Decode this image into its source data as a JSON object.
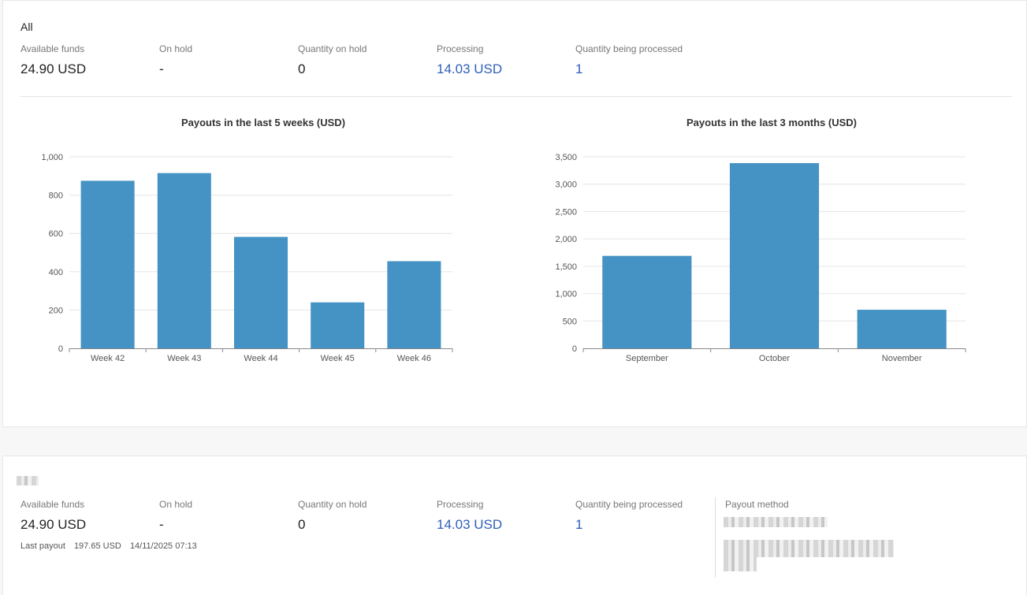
{
  "summary": {
    "title": "All",
    "metrics": [
      {
        "label": "Available funds",
        "value": "24.90 USD",
        "link": false
      },
      {
        "label": "On hold",
        "value": "-",
        "link": false
      },
      {
        "label": "Quantity on hold",
        "value": "0",
        "link": false
      },
      {
        "label": "Processing",
        "value": "14.03 USD",
        "link": true
      },
      {
        "label": "Quantity being processed",
        "value": "1",
        "link": true
      }
    ]
  },
  "chart_data": [
    {
      "type": "bar",
      "title": "Payouts in the last 5 weeks (USD)",
      "categories": [
        "Week 42",
        "Week 43",
        "Week 44",
        "Week 45",
        "Week 46"
      ],
      "values": [
        875,
        915,
        582,
        240,
        455
      ],
      "ylim": [
        0,
        1000
      ],
      "yticks": [
        0,
        200,
        400,
        600,
        800,
        1000
      ],
      "ytick_labels": [
        "0",
        "200",
        "400",
        "600",
        "800",
        "1,000"
      ],
      "grid": true,
      "color": "#4593c4"
    },
    {
      "type": "bar",
      "title": "Payouts in the last 3 months (USD)",
      "categories": [
        "September",
        "October",
        "November"
      ],
      "values": [
        1690,
        3385,
        705
      ],
      "ylim": [
        0,
        3500
      ],
      "yticks": [
        0,
        500,
        1000,
        1500,
        2000,
        2500,
        3000,
        3500
      ],
      "ytick_labels": [
        "0",
        "500",
        "1,000",
        "1,500",
        "2,000",
        "2,500",
        "3,000",
        "3,500"
      ],
      "grid": true,
      "color": "#4593c4"
    }
  ],
  "account": {
    "metrics": [
      {
        "label": "Available funds",
        "value": "24.90 USD",
        "link": false
      },
      {
        "label": "On hold",
        "value": "-",
        "link": false
      },
      {
        "label": "Quantity on hold",
        "value": "0",
        "link": false
      },
      {
        "label": "Processing",
        "value": "14.03 USD",
        "link": true
      },
      {
        "label": "Quantity being processed",
        "value": "1",
        "link": true
      }
    ],
    "last_payout": {
      "label": "Last payout",
      "amount": "197.65 USD",
      "datetime": "14/11/2025 07:13"
    },
    "payout_method_label": "Payout method"
  }
}
